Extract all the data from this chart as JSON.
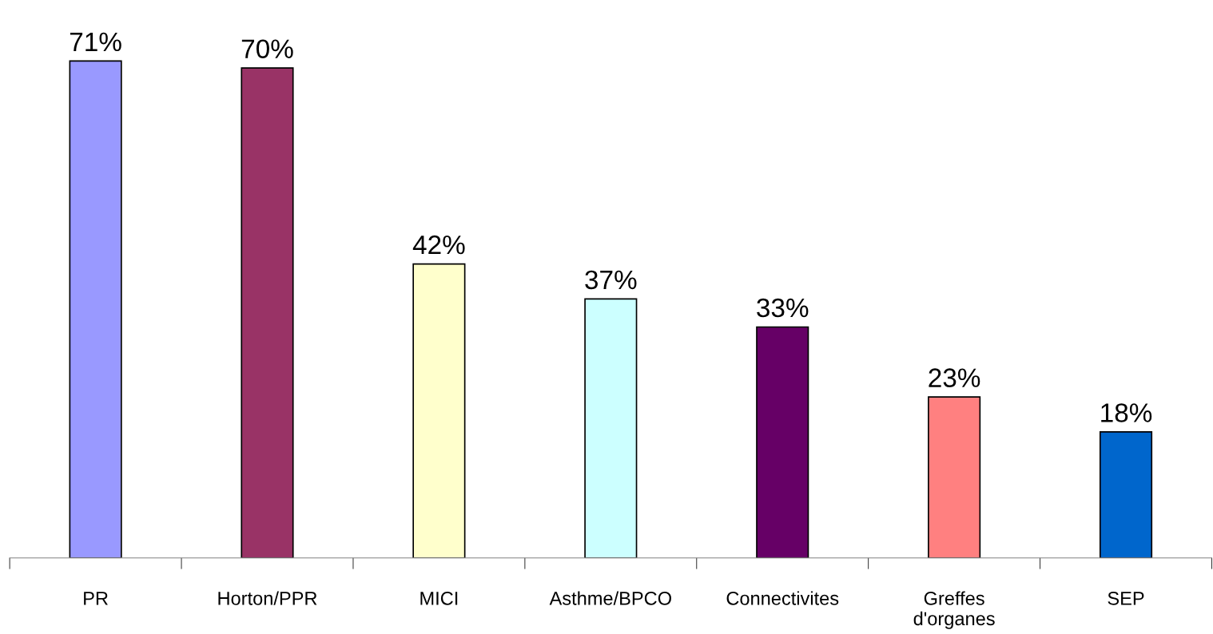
{
  "chart_data": {
    "type": "bar",
    "categories": [
      "PR",
      "Horton/PPR",
      "MICI",
      "Asthme/BPCO",
      "Connectivites",
      "Greffes\nd'organes",
      "SEP"
    ],
    "values": [
      71,
      70,
      42,
      37,
      33,
      23,
      18
    ],
    "colors": [
      "#9999ff",
      "#993366",
      "#ffffcc",
      "#ccffff",
      "#660066",
      "#ff8080",
      "#0066cc"
    ],
    "value_labels": [
      "71%",
      "70%",
      "42%",
      "37%",
      "33%",
      "23%",
      "18%"
    ],
    "grid": false,
    "legend": false
  }
}
